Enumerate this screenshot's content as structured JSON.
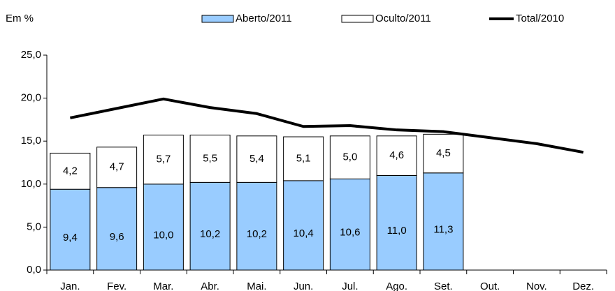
{
  "chart_data": {
    "type": "bar",
    "stacked": true,
    "y_label": "Em %",
    "categories": [
      "Jan.",
      "Fev.",
      "Mar.",
      "Abr.",
      "Mai.",
      "Jun.",
      "Jul.",
      "Ago.",
      "Set.",
      "Out.",
      "Nov.",
      "Dez."
    ],
    "series": [
      {
        "name": "Aberto/2011",
        "color": "#99ccff",
        "values": [
          9.4,
          9.6,
          10.0,
          10.2,
          10.2,
          10.4,
          10.6,
          11.0,
          11.3,
          null,
          null,
          null
        ],
        "value_labels": [
          "9,4",
          "9,6",
          "10,0",
          "10,2",
          "10,2",
          "10,4",
          "10,6",
          "11,0",
          "11,3",
          null,
          null,
          null
        ]
      },
      {
        "name": "Oculto/2011",
        "color": "#ffffff",
        "values": [
          4.2,
          4.7,
          5.7,
          5.5,
          5.4,
          5.1,
          5.0,
          4.6,
          4.5,
          null,
          null,
          null
        ],
        "value_labels": [
          "4,2",
          "4,7",
          "5,7",
          "5,5",
          "5,4",
          "5,1",
          "5,0",
          "4,6",
          "4,5",
          null,
          null,
          null
        ]
      },
      {
        "name": "Total/2010",
        "type": "line",
        "color": "#000000",
        "values": [
          17.7,
          18.8,
          19.9,
          18.9,
          18.2,
          16.7,
          16.8,
          16.3,
          16.1,
          15.4,
          14.7,
          13.7
        ]
      }
    ],
    "ylim": [
      0,
      25
    ],
    "yticks": [
      {
        "value": 0,
        "label": "0,0"
      },
      {
        "value": 5,
        "label": "5,0"
      },
      {
        "value": 10,
        "label": "10,0"
      },
      {
        "value": 15,
        "label": "15,0"
      },
      {
        "value": 20,
        "label": "20,0"
      },
      {
        "value": 25,
        "label": "25,0"
      }
    ],
    "grid": false
  }
}
